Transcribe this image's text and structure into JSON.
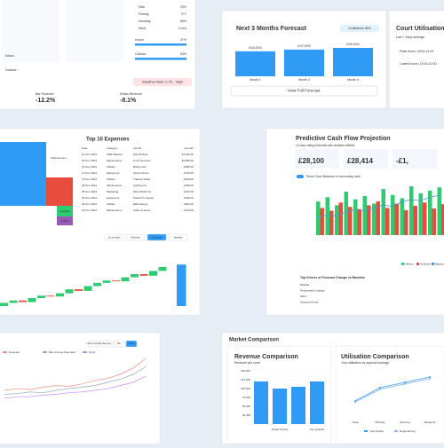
{
  "weather_cards": [
    {
      "label": "Bar Revenue",
      "change": "-12.2%"
    },
    {
      "label": "Drinks Revenue",
      "change": "-8.1%"
    }
  ],
  "weather_risk": "Weather Risk: 0.75 - High",
  "conditions": [
    {
      "label": "Rain",
      "value": "20%"
    },
    {
      "label": "Feeling",
      "value": "9°C"
    },
    {
      "label": "Humidity",
      "value": "68%"
    },
    {
      "label": "Wind",
      "value": "5 m/s"
    }
  ],
  "split": [
    {
      "label": "Indoor",
      "value": "47%"
    },
    {
      "label": "Outdoor",
      "value": "53%"
    }
  ],
  "forecast": {
    "title": "Next 3 Months Forecast",
    "badge": "Confidence 85%",
    "months": [
      "Month 1",
      "Month 2",
      "Month 3"
    ],
    "values": [
      44000,
      47000,
      50000
    ],
    "value_labels": [
      "£44,000",
      "£47,000",
      "£50,000"
    ],
    "button": "View Full Forecast"
  },
  "utilisation": {
    "title": "Court Utilisation Ch",
    "subtitle": "Last 7 Days average",
    "peak": "Peak hours: 18:00-21:00",
    "low": "Lowest hours: 10:00-12:00"
  },
  "treemap": [
    "Maintenance",
    "Supplies",
    "Utilities"
  ],
  "expenses": {
    "title": "Top 10 Expenses",
    "columns": [
      "Date",
      "Category",
      "Vendor",
      "Amount"
    ],
    "rows": [
      [
        "21 Nov 2024",
        "Staff Salaries",
        "Payroll Dept",
        "£4,200.00"
      ],
      [
        "18 Nov 2024",
        "Maintenance",
        "Court Services",
        "£1,850.00"
      ],
      [
        "15 Nov 2024",
        "Utilities",
        "British Gas",
        "£980.00"
      ],
      [
        "12 Nov 2024",
        "Equipment",
        "Sports Direct",
        "£760.00"
      ],
      [
        "10 Nov 2024",
        "Utilities",
        "Thames Water",
        "£540.00"
      ],
      [
        "08 Nov 2024",
        "Maintenance",
        "Lighting Co",
        "£480.00"
      ],
      [
        "05 Nov 2024",
        "Marketing",
        "Meta Platforms",
        "£420.00"
      ],
      [
        "03 Nov 2024",
        "Equipment",
        "Padel Pro Supply",
        "£390.00"
      ],
      [
        "02 Nov 2024",
        "Utilities",
        "EDF Energy",
        "£360.00"
      ],
      [
        "01 Nov 2024",
        "Maintenance",
        "Clean & Serve",
        "£310.00"
      ]
    ]
  },
  "waterfall": {
    "controls": [
      "12 months",
      "Monthly",
      "Forecast",
      "Weekly"
    ],
    "changes": [
      4,
      3,
      -2,
      5,
      3,
      -1,
      4,
      5,
      -2,
      6,
      4,
      3,
      -1,
      5,
      4,
      -2,
      6,
      5
    ],
    "total": 52
  },
  "cashflow": {
    "title": "Predictive Cash Flow Projection",
    "subtitle": "12-day rolling forecast with weather effects",
    "kpis": [
      "£28,100",
      "£28,414",
      "-£1,"
    ],
    "toggle": "Show Cash Balance on secondary axis",
    "inflow": [
      62,
      70,
      55,
      80,
      66,
      72,
      58,
      85,
      74,
      68,
      90,
      77,
      82,
      88
    ],
    "outflow": [
      50,
      45,
      60,
      52,
      48,
      55,
      62,
      50,
      58,
      46,
      54,
      60,
      49,
      57
    ],
    "balance": [
      20,
      22,
      21,
      25,
      27,
      26,
      29,
      31,
      30,
      34,
      36,
      35,
      38,
      40
    ],
    "legend": [
      "Inflows",
      "Outflows",
      "Balance"
    ],
    "drivers_title": "Top Drivers of Forecast Change vs Baseline",
    "drivers": [
      "Rainfall",
      "Temperature change",
      "Wind",
      "Seasonal trend"
    ]
  },
  "trend": {
    "controls": [
      "Last 12 Months",
      "Revenue",
      "Bar",
      "Court"
    ],
    "legend": [
      "Revenue",
      "Bar revenue (forecast)",
      "Court"
    ],
    "series": [
      {
        "color": "#f28b82",
        "values": [
          20,
          22,
          21,
          24,
          26,
          25,
          28,
          32,
          35,
          40,
          48,
          60
        ]
      },
      {
        "color": "#9aa6b8",
        "values": [
          15,
          16,
          18,
          17,
          20,
          22,
          24,
          26,
          30,
          34,
          40,
          50
        ]
      },
      {
        "color": "#c58af9",
        "values": [
          10,
          12,
          12,
          14,
          15,
          17,
          18,
          20,
          22,
          26,
          30,
          38
        ]
      }
    ]
  },
  "market": {
    "title": "Market Comparison",
    "revenue": {
      "title": "Revenue Comparison",
      "subtitle": "Revenue per court",
      "categories": [
        null,
        "Regional Avg",
        null,
        "Top Quartile"
      ],
      "values": [
        120000,
        100000,
        105000,
        120000
      ],
      "ylim": [
        0,
        150000
      ],
      "yticks": [
        {
          "value": 25000,
          "label": "25,000"
        },
        {
          "value": 50000,
          "label": "50,000"
        },
        {
          "value": 75000,
          "label": "75,000"
        },
        {
          "value": 100000,
          "label": "100,000"
        },
        {
          "value": 125000,
          "label": "125,000"
        },
        {
          "value": 150000,
          "label": "150,000"
        }
      ]
    },
    "utilisation": {
      "title": "Utilisation Comparison",
      "subtitle": "Your utilisation vs regional average",
      "categories": [
        "Peak",
        "Mid Day",
        "Evening",
        "Weekend"
      ],
      "ylim": [
        0,
        100
      ],
      "series": [
        {
          "name": "Your Facility",
          "color": "#2f9bf5",
          "values": [
            30,
            55,
            65,
            75
          ]
        },
        {
          "name": "Regional Avg",
          "color": "#8fb8e8",
          "values": [
            28,
            52,
            62,
            72
          ]
        }
      ]
    }
  }
}
